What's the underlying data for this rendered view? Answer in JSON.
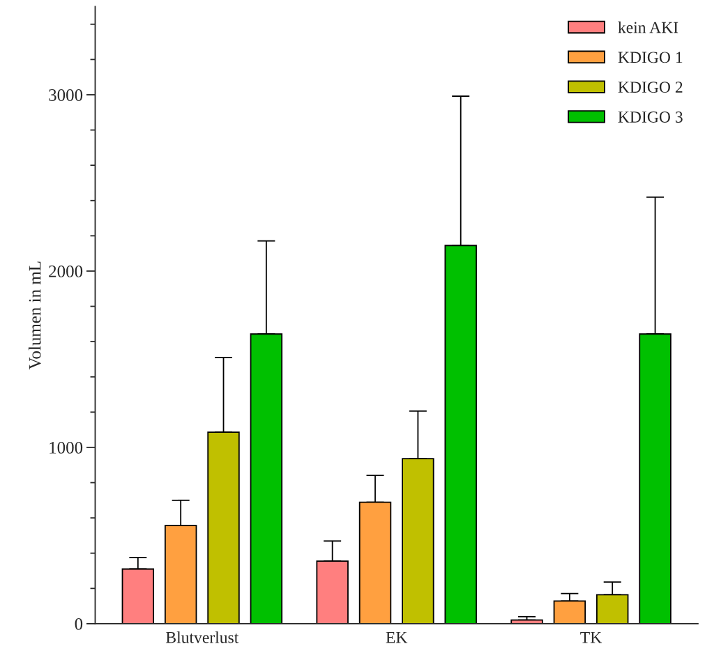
{
  "chart_data": {
    "type": "bar",
    "ylabel": "Volumen in mL",
    "categories": [
      "Blutverlust",
      "EK",
      "TK"
    ],
    "series": [
      {
        "name": "kein AKI",
        "color": "#ff7f7f",
        "values": [
          310,
          355,
          21
        ],
        "errors": [
          [
            310,
            376
          ],
          [
            355,
            469
          ],
          [
            21,
            40
          ]
        ]
      },
      {
        "name": "KDIGO 1",
        "color": "#ffa040",
        "values": [
          557,
          689,
          129
        ],
        "errors": [
          [
            557,
            700
          ],
          [
            689,
            841
          ],
          [
            129,
            171
          ]
        ]
      },
      {
        "name": "KDIGO 2",
        "color": "#c0c000",
        "values": [
          1086,
          936,
          164
        ],
        "errors": [
          [
            1086,
            1510
          ],
          [
            936,
            1206
          ],
          [
            164,
            236
          ]
        ]
      },
      {
        "name": "KDIGO 3",
        "color": "#00c000",
        "values": [
          1643,
          2145,
          1643
        ],
        "errors": [
          [
            1643,
            2171
          ],
          [
            2145,
            2992
          ],
          [
            1643,
            2419
          ]
        ]
      }
    ],
    "ylim": [
      0,
      3500
    ],
    "yticks": [
      0,
      {
        "value": 200,
        "label": null
      },
      {
        "value": 400,
        "label": null
      },
      {
        "value": 600,
        "label": null
      },
      {
        "value": 800,
        "label": null
      },
      1000,
      {
        "value": 1200,
        "label": null
      },
      {
        "value": 1400,
        "label": null
      },
      {
        "value": 1600,
        "label": null
      },
      {
        "value": 1800,
        "label": null
      },
      2000,
      {
        "value": 2200,
        "label": null
      },
      {
        "value": 2400,
        "label": null
      },
      {
        "value": 2600,
        "label": null
      },
      {
        "value": 2800,
        "label": null
      },
      3000,
      {
        "value": 3200,
        "label": null
      },
      {
        "value": 3400,
        "label": null
      }
    ],
    "grid": false,
    "legend": "top right"
  }
}
